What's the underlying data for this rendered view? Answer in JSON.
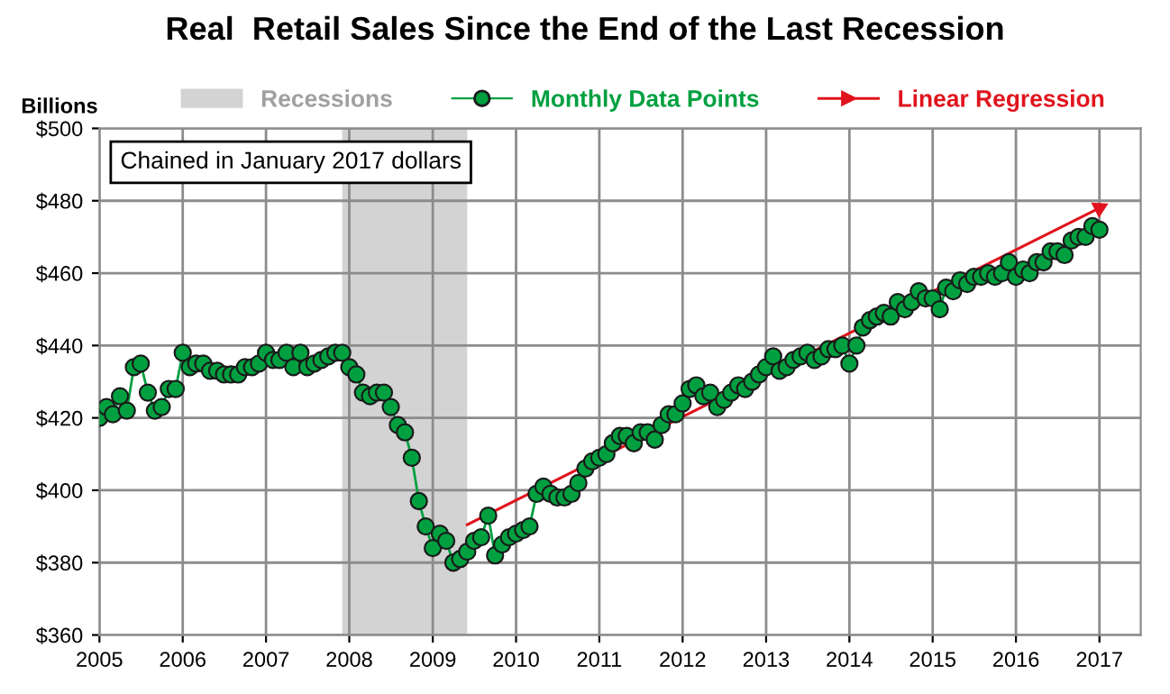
{
  "chart_data": {
    "type": "line",
    "title": "Real  Retail Sales Since the End of the Last Recession",
    "ylabel": "Billions",
    "annotations": [
      "Chained in January 2017 dollars"
    ],
    "x": [
      "2005-01",
      "2005-02",
      "2005-03",
      "2005-04",
      "2005-05",
      "2005-06",
      "2005-07",
      "2005-08",
      "2005-09",
      "2005-10",
      "2005-11",
      "2005-12",
      "2006-01",
      "2006-02",
      "2006-03",
      "2006-04",
      "2006-05",
      "2006-06",
      "2006-07",
      "2006-08",
      "2006-09",
      "2006-10",
      "2006-11",
      "2006-12",
      "2007-01",
      "2007-02",
      "2007-03",
      "2007-04",
      "2007-05",
      "2007-06",
      "2007-07",
      "2007-08",
      "2007-09",
      "2007-10",
      "2007-11",
      "2007-12",
      "2008-01",
      "2008-02",
      "2008-03",
      "2008-04",
      "2008-05",
      "2008-06",
      "2008-07",
      "2008-08",
      "2008-09",
      "2008-10",
      "2008-11",
      "2008-12",
      "2009-01",
      "2009-02",
      "2009-03",
      "2009-04",
      "2009-05",
      "2009-06",
      "2009-07",
      "2009-08",
      "2009-09",
      "2009-10",
      "2009-11",
      "2009-12",
      "2010-01",
      "2010-02",
      "2010-03",
      "2010-04",
      "2010-05",
      "2010-06",
      "2010-07",
      "2010-08",
      "2010-09",
      "2010-10",
      "2010-11",
      "2010-12",
      "2011-01",
      "2011-02",
      "2011-03",
      "2011-04",
      "2011-05",
      "2011-06",
      "2011-07",
      "2011-08",
      "2011-09",
      "2011-10",
      "2011-11",
      "2011-12",
      "2012-01",
      "2012-02",
      "2012-03",
      "2012-04",
      "2012-05",
      "2012-06",
      "2012-07",
      "2012-08",
      "2012-09",
      "2012-10",
      "2012-11",
      "2012-12",
      "2013-01",
      "2013-02",
      "2013-03",
      "2013-04",
      "2013-05",
      "2013-06",
      "2013-07",
      "2013-08",
      "2013-09",
      "2013-10",
      "2013-11",
      "2013-12",
      "2014-01",
      "2014-02",
      "2014-03",
      "2014-04",
      "2014-05",
      "2014-06",
      "2014-07",
      "2014-08",
      "2014-09",
      "2014-10",
      "2014-11",
      "2014-12",
      "2015-01",
      "2015-02",
      "2015-03",
      "2015-04",
      "2015-05",
      "2015-06",
      "2015-07",
      "2015-08",
      "2015-09",
      "2015-10",
      "2015-11",
      "2015-12",
      "2016-01",
      "2016-02",
      "2016-03",
      "2016-04",
      "2016-05",
      "2016-06",
      "2016-07",
      "2016-08",
      "2016-09",
      "2016-10",
      "2016-11",
      "2016-12",
      "2017-01"
    ],
    "series": [
      {
        "name": "Monthly Data Points",
        "marker": "circle",
        "color": "#00a040",
        "values": [
          420,
          423,
          421,
          426,
          422,
          434,
          435,
          427,
          422,
          423,
          428,
          428,
          438,
          434,
          435,
          435,
          433,
          433,
          432,
          432,
          432,
          434,
          434,
          435,
          438,
          436,
          436,
          438,
          434,
          438,
          434,
          435,
          436,
          437,
          438,
          438,
          434,
          432,
          427,
          426,
          427,
          427,
          423,
          418,
          416,
          409,
          397,
          390,
          384,
          388,
          386,
          380,
          381,
          383,
          386,
          387,
          393,
          382,
          385,
          387,
          388,
          389,
          390,
          399,
          401,
          399,
          398,
          398,
          399,
          402,
          406,
          408,
          409,
          410,
          413,
          415,
          415,
          413,
          416,
          416,
          414,
          418,
          421,
          421,
          424,
          428,
          429,
          426,
          427,
          423,
          425,
          427,
          429,
          428,
          430,
          432,
          434,
          437,
          433,
          434,
          436,
          437,
          438,
          436,
          437,
          439,
          439,
          440,
          435,
          440,
          445,
          447,
          448,
          449,
          448,
          452,
          450,
          452,
          455,
          453,
          453,
          450,
          456,
          455,
          458,
          457,
          459,
          459,
          460,
          459,
          460,
          463,
          459,
          461,
          460,
          463,
          463,
          466,
          466,
          465,
          469,
          470,
          470,
          473,
          472
        ]
      },
      {
        "name": "Linear Regression",
        "marker": "triangle",
        "color": "#e0141e",
        "x": [
          "2009-06",
          "2017-01"
        ],
        "values": [
          390.5,
          478
        ]
      }
    ],
    "bands": [
      {
        "axis": "x",
        "from": "2007-12",
        "to": "2009-06",
        "label": "Recessions",
        "color": "#d3d3d3"
      }
    ],
    "xlim": [
      "2005-01",
      "2017-07"
    ],
    "xticks": [
      {
        "value": "2005-01",
        "label": "2005"
      },
      {
        "value": "2006-01",
        "label": "2006"
      },
      {
        "value": "2007-01",
        "label": "2007"
      },
      {
        "value": "2008-01",
        "label": "2008"
      },
      {
        "value": "2009-01",
        "label": "2009"
      },
      {
        "value": "2010-01",
        "label": "2010"
      },
      {
        "value": "2011-01",
        "label": "2011"
      },
      {
        "value": "2012-01",
        "label": "2012"
      },
      {
        "value": "2013-01",
        "label": "2013"
      },
      {
        "value": "2014-01",
        "label": "2014"
      },
      {
        "value": "2015-01",
        "label": "2015"
      },
      {
        "value": "2016-01",
        "label": "2016"
      },
      {
        "value": "2017-01",
        "label": "2017"
      }
    ],
    "ylim": [
      360,
      500
    ],
    "yticks": [
      {
        "value": 360,
        "label": "$360"
      },
      {
        "value": 380,
        "label": "$380"
      },
      {
        "value": 400,
        "label": "$400"
      },
      {
        "value": 420,
        "label": "$420"
      },
      {
        "value": 440,
        "label": "$440"
      },
      {
        "value": 460,
        "label": "$460"
      },
      {
        "value": 480,
        "label": "$480"
      },
      {
        "value": 500,
        "label": "$500"
      }
    ],
    "grid": true,
    "legend": "top"
  }
}
